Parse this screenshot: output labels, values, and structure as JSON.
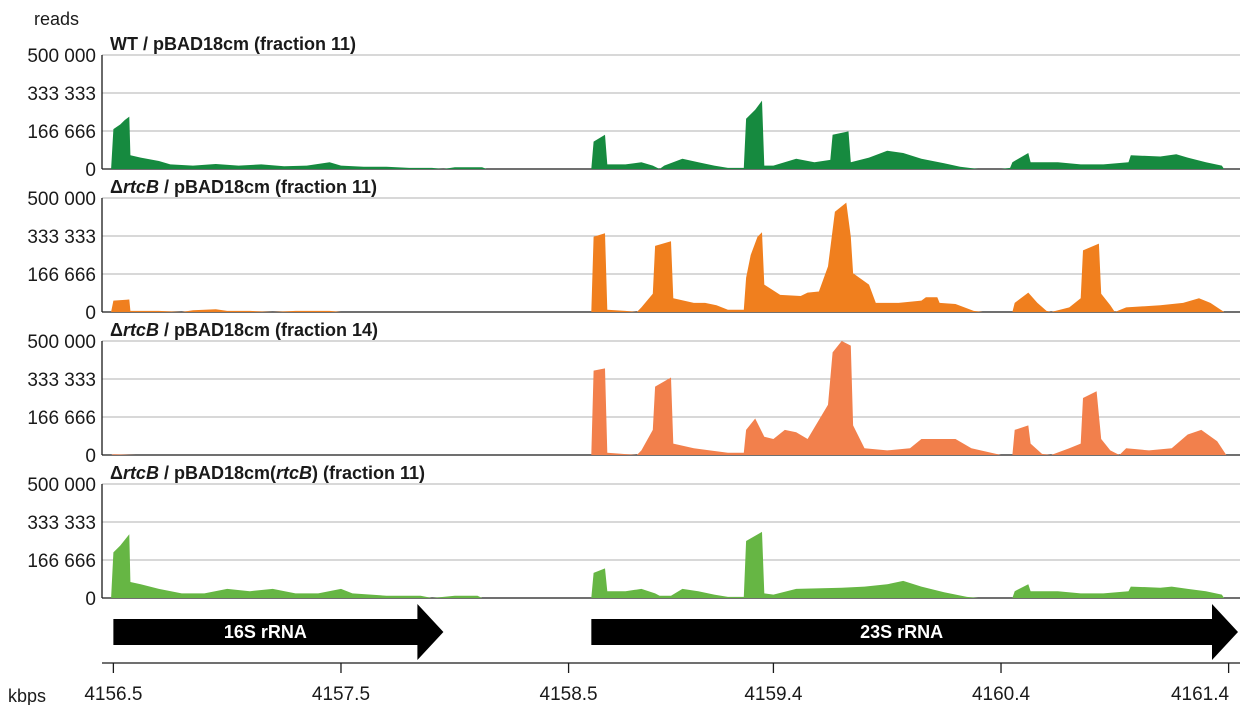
{
  "chart_data": {
    "type": "area",
    "ylabel": "reads",
    "xlabel": "kbps",
    "xlim": [
      4156.45,
      4161.45
    ],
    "x_ticks": [
      {
        "value": 4156.5,
        "label": "4156.5"
      },
      {
        "value": 4157.5,
        "label": "4157.5"
      },
      {
        "value": 4158.5,
        "label": "4158.5"
      },
      {
        "value": 4159.4,
        "label": "4159.4"
      },
      {
        "value": 4160.4,
        "label": "4160.4"
      },
      {
        "value": 4161.4,
        "label": "4161.4"
      }
    ],
    "ylim": [
      0,
      500000
    ],
    "y_ticks": [
      {
        "value": 0,
        "label": "0"
      },
      {
        "value": 166666,
        "label": "166 666"
      },
      {
        "value": 333333,
        "label": "333 333"
      },
      {
        "value": 500000,
        "label": "500 000"
      }
    ],
    "grid": true,
    "panels": [
      {
        "id": "wt",
        "title_parts": [
          {
            "text": "WT / pBAD18cm (fraction 11)",
            "italic": false
          }
        ],
        "color": "#168a3f",
        "points": [
          [
            4156.49,
            0
          ],
          [
            4156.5,
            175000
          ],
          [
            4156.53,
            195000
          ],
          [
            4156.55,
            215000
          ],
          [
            4156.57,
            230000
          ],
          [
            4156.575,
            60000
          ],
          [
            4156.62,
            50000
          ],
          [
            4156.7,
            35000
          ],
          [
            4156.75,
            20000
          ],
          [
            4156.85,
            15000
          ],
          [
            4156.95,
            22000
          ],
          [
            4157.05,
            15000
          ],
          [
            4157.15,
            20000
          ],
          [
            4157.25,
            12000
          ],
          [
            4157.35,
            15000
          ],
          [
            4157.45,
            30000
          ],
          [
            4157.5,
            15000
          ],
          [
            4157.6,
            10000
          ],
          [
            4157.7,
            10000
          ],
          [
            4157.8,
            5000
          ],
          [
            4157.9,
            5000
          ],
          [
            4157.95,
            0
          ],
          [
            4158.0,
            8000
          ],
          [
            4158.12,
            8000
          ],
          [
            4158.14,
            0
          ],
          [
            4158.6,
            0
          ],
          [
            4158.61,
            120000
          ],
          [
            4158.66,
            150000
          ],
          [
            4158.67,
            20000
          ],
          [
            4158.75,
            20000
          ],
          [
            4158.82,
            30000
          ],
          [
            4158.87,
            15000
          ],
          [
            4158.9,
            0
          ],
          [
            4158.92,
            15000
          ],
          [
            4159.0,
            45000
          ],
          [
            4159.07,
            30000
          ],
          [
            4159.14,
            15000
          ],
          [
            4159.2,
            5000
          ],
          [
            4159.27,
            5000
          ],
          [
            4159.28,
            220000
          ],
          [
            4159.32,
            260000
          ],
          [
            4159.35,
            300000
          ],
          [
            4159.36,
            15000
          ],
          [
            4159.4,
            15000
          ],
          [
            4159.5,
            45000
          ],
          [
            4159.58,
            30000
          ],
          [
            4159.65,
            40000
          ],
          [
            4159.66,
            150000
          ],
          [
            4159.73,
            165000
          ],
          [
            4159.74,
            30000
          ],
          [
            4159.82,
            50000
          ],
          [
            4159.9,
            80000
          ],
          [
            4159.97,
            70000
          ],
          [
            4160.05,
            45000
          ],
          [
            4160.15,
            25000
          ],
          [
            4160.22,
            10000
          ],
          [
            4160.3,
            0
          ],
          [
            4160.4,
            0
          ],
          [
            4160.44,
            5000
          ],
          [
            4160.45,
            30000
          ],
          [
            4160.52,
            70000
          ],
          [
            4160.53,
            30000
          ],
          [
            4160.65,
            30000
          ],
          [
            4160.75,
            20000
          ],
          [
            4160.85,
            20000
          ],
          [
            4160.96,
            30000
          ],
          [
            4160.97,
            60000
          ],
          [
            4161.1,
            55000
          ],
          [
            4161.17,
            65000
          ],
          [
            4161.22,
            50000
          ],
          [
            4161.3,
            30000
          ],
          [
            4161.37,
            15000
          ],
          [
            4161.38,
            0
          ]
        ]
      },
      {
        "id": "rtcb-11",
        "title_parts": [
          {
            "text": "Δ",
            "italic": false
          },
          {
            "text": "rtcB",
            "italic": true
          },
          {
            "text": " / pBAD18cm (fraction 11)",
            "italic": false
          }
        ],
        "color": "#f07f1e",
        "points": [
          [
            4156.49,
            0
          ],
          [
            4156.5,
            50000
          ],
          [
            4156.57,
            55000
          ],
          [
            4156.575,
            5000
          ],
          [
            4156.7,
            5000
          ],
          [
            4156.8,
            0
          ],
          [
            4156.85,
            8000
          ],
          [
            4156.95,
            12000
          ],
          [
            4157.0,
            5000
          ],
          [
            4157.1,
            5000
          ],
          [
            4157.2,
            0
          ],
          [
            4157.3,
            5000
          ],
          [
            4157.45,
            5000
          ],
          [
            4157.5,
            0
          ],
          [
            4158.6,
            0
          ],
          [
            4158.61,
            330000
          ],
          [
            4158.66,
            345000
          ],
          [
            4158.67,
            10000
          ],
          [
            4158.75,
            5000
          ],
          [
            4158.8,
            0
          ],
          [
            4158.82,
            20000
          ],
          [
            4158.87,
            80000
          ],
          [
            4158.88,
            290000
          ],
          [
            4158.95,
            310000
          ],
          [
            4158.96,
            60000
          ],
          [
            4159.05,
            40000
          ],
          [
            4159.1,
            40000
          ],
          [
            4159.15,
            30000
          ],
          [
            4159.2,
            10000
          ],
          [
            4159.27,
            10000
          ],
          [
            4159.28,
            150000
          ],
          [
            4159.3,
            250000
          ],
          [
            4159.33,
            330000
          ],
          [
            4159.35,
            350000
          ],
          [
            4159.36,
            120000
          ],
          [
            4159.43,
            75000
          ],
          [
            4159.52,
            70000
          ],
          [
            4159.55,
            85000
          ],
          [
            4159.6,
            90000
          ],
          [
            4159.64,
            200000
          ],
          [
            4159.67,
            440000
          ],
          [
            4159.72,
            480000
          ],
          [
            4159.74,
            330000
          ],
          [
            4159.75,
            170000
          ],
          [
            4159.82,
            120000
          ],
          [
            4159.85,
            40000
          ],
          [
            4159.95,
            40000
          ],
          [
            4160.05,
            50000
          ],
          [
            4160.07,
            65000
          ],
          [
            4160.12,
            65000
          ],
          [
            4160.13,
            40000
          ],
          [
            4160.2,
            35000
          ],
          [
            4160.28,
            5000
          ],
          [
            4160.32,
            0
          ],
          [
            4160.45,
            0
          ],
          [
            4160.46,
            40000
          ],
          [
            4160.52,
            85000
          ],
          [
            4160.56,
            40000
          ],
          [
            4160.6,
            5000
          ],
          [
            4160.62,
            0
          ],
          [
            4160.7,
            20000
          ],
          [
            4160.75,
            60000
          ],
          [
            4160.76,
            270000
          ],
          [
            4160.83,
            300000
          ],
          [
            4160.84,
            80000
          ],
          [
            4160.88,
            30000
          ],
          [
            4160.9,
            0
          ],
          [
            4160.95,
            20000
          ],
          [
            4161.1,
            30000
          ],
          [
            4161.2,
            40000
          ],
          [
            4161.27,
            60000
          ],
          [
            4161.32,
            40000
          ],
          [
            4161.38,
            0
          ]
        ]
      },
      {
        "id": "rtcb-14",
        "title_parts": [
          {
            "text": "Δ",
            "italic": false
          },
          {
            "text": "rtcB",
            "italic": true
          },
          {
            "text": " / pBAD18cm (fraction 14)",
            "italic": false
          }
        ],
        "color": "#f2804c",
        "points": [
          [
            4156.49,
            0
          ],
          [
            4156.5,
            3000
          ],
          [
            4156.6,
            0
          ],
          [
            4158.6,
            0
          ],
          [
            4158.61,
            370000
          ],
          [
            4158.66,
            380000
          ],
          [
            4158.67,
            10000
          ],
          [
            4158.8,
            0
          ],
          [
            4158.82,
            20000
          ],
          [
            4158.87,
            110000
          ],
          [
            4158.88,
            300000
          ],
          [
            4158.95,
            340000
          ],
          [
            4158.96,
            50000
          ],
          [
            4159.05,
            30000
          ],
          [
            4159.12,
            20000
          ],
          [
            4159.2,
            10000
          ],
          [
            4159.27,
            10000
          ],
          [
            4159.28,
            110000
          ],
          [
            4159.32,
            160000
          ],
          [
            4159.36,
            80000
          ],
          [
            4159.4,
            70000
          ],
          [
            4159.45,
            110000
          ],
          [
            4159.5,
            100000
          ],
          [
            4159.55,
            70000
          ],
          [
            4159.64,
            220000
          ],
          [
            4159.66,
            450000
          ],
          [
            4159.7,
            500000
          ],
          [
            4159.74,
            480000
          ],
          [
            4159.75,
            130000
          ],
          [
            4159.8,
            30000
          ],
          [
            4159.9,
            20000
          ],
          [
            4160.0,
            30000
          ],
          [
            4160.05,
            70000
          ],
          [
            4160.2,
            70000
          ],
          [
            4160.27,
            30000
          ],
          [
            4160.4,
            0
          ],
          [
            4160.45,
            0
          ],
          [
            4160.46,
            110000
          ],
          [
            4160.52,
            130000
          ],
          [
            4160.53,
            50000
          ],
          [
            4160.58,
            5000
          ],
          [
            4160.62,
            0
          ],
          [
            4160.7,
            30000
          ],
          [
            4160.75,
            50000
          ],
          [
            4160.76,
            250000
          ],
          [
            4160.82,
            280000
          ],
          [
            4160.84,
            70000
          ],
          [
            4160.88,
            20000
          ],
          [
            4160.92,
            0
          ],
          [
            4160.95,
            30000
          ],
          [
            4161.05,
            20000
          ],
          [
            4161.15,
            30000
          ],
          [
            4161.22,
            90000
          ],
          [
            4161.28,
            110000
          ],
          [
            4161.35,
            60000
          ],
          [
            4161.39,
            0
          ]
        ]
      },
      {
        "id": "rtcb-comp",
        "title_parts": [
          {
            "text": "Δ",
            "italic": false
          },
          {
            "text": "rtcB",
            "italic": true
          },
          {
            "text": " / pBAD18cm(",
            "italic": false
          },
          {
            "text": "rtcB",
            "italic": true
          },
          {
            "text": ") (fraction 11)",
            "italic": false
          }
        ],
        "color": "#66b644",
        "points": [
          [
            4156.49,
            0
          ],
          [
            4156.5,
            200000
          ],
          [
            4156.53,
            230000
          ],
          [
            4156.57,
            280000
          ],
          [
            4156.575,
            70000
          ],
          [
            4156.62,
            60000
          ],
          [
            4156.7,
            40000
          ],
          [
            4156.8,
            20000
          ],
          [
            4156.9,
            20000
          ],
          [
            4157.0,
            40000
          ],
          [
            4157.1,
            30000
          ],
          [
            4157.2,
            40000
          ],
          [
            4157.3,
            20000
          ],
          [
            4157.4,
            20000
          ],
          [
            4157.5,
            40000
          ],
          [
            4157.55,
            20000
          ],
          [
            4157.7,
            10000
          ],
          [
            4157.85,
            10000
          ],
          [
            4157.9,
            0
          ],
          [
            4158.0,
            10000
          ],
          [
            4158.1,
            10000
          ],
          [
            4158.12,
            0
          ],
          [
            4158.6,
            0
          ],
          [
            4158.61,
            110000
          ],
          [
            4158.66,
            130000
          ],
          [
            4158.67,
            30000
          ],
          [
            4158.75,
            30000
          ],
          [
            4158.82,
            40000
          ],
          [
            4158.88,
            20000
          ],
          [
            4158.9,
            10000
          ],
          [
            4158.95,
            10000
          ],
          [
            4159.0,
            40000
          ],
          [
            4159.07,
            30000
          ],
          [
            4159.14,
            15000
          ],
          [
            4159.2,
            5000
          ],
          [
            4159.27,
            5000
          ],
          [
            4159.28,
            250000
          ],
          [
            4159.35,
            290000
          ],
          [
            4159.36,
            20000
          ],
          [
            4159.4,
            15000
          ],
          [
            4159.5,
            40000
          ],
          [
            4159.7,
            45000
          ],
          [
            4159.8,
            50000
          ],
          [
            4159.9,
            60000
          ],
          [
            4159.97,
            75000
          ],
          [
            4160.05,
            50000
          ],
          [
            4160.15,
            25000
          ],
          [
            4160.25,
            5000
          ],
          [
            4160.3,
            0
          ],
          [
            4160.45,
            0
          ],
          [
            4160.46,
            30000
          ],
          [
            4160.52,
            60000
          ],
          [
            4160.53,
            30000
          ],
          [
            4160.65,
            30000
          ],
          [
            4160.75,
            20000
          ],
          [
            4160.85,
            20000
          ],
          [
            4160.96,
            30000
          ],
          [
            4160.97,
            50000
          ],
          [
            4161.1,
            45000
          ],
          [
            4161.15,
            50000
          ],
          [
            4161.22,
            40000
          ],
          [
            4161.3,
            30000
          ],
          [
            4161.37,
            15000
          ],
          [
            4161.38,
            0
          ]
        ]
      }
    ],
    "genes": [
      {
        "label": "16S  rRNA",
        "start": 4156.5,
        "end": 4157.95
      },
      {
        "label": "23S  rRNA",
        "start": 4158.6,
        "end": 4161.45
      }
    ]
  }
}
